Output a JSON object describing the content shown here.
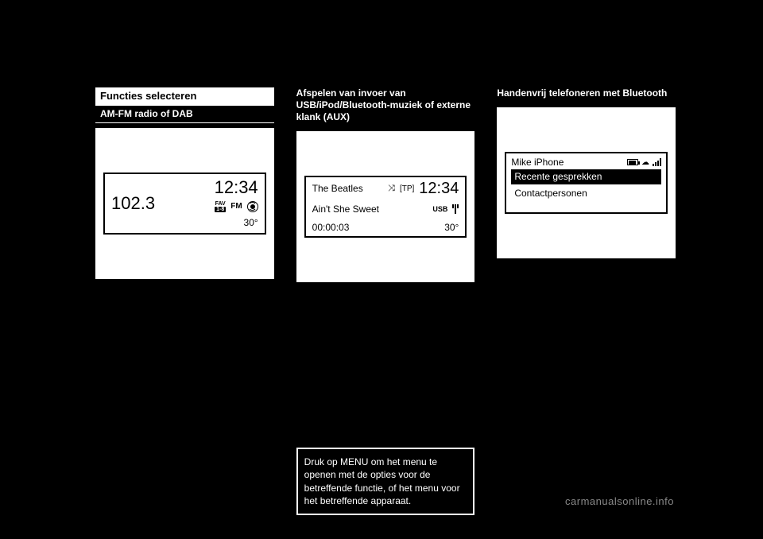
{
  "col1": {
    "heading": "Functies selecteren",
    "sub": "AM-FM radio of DAB",
    "radio": {
      "freq": "102.3",
      "clock": "12:34",
      "fav_top": "FAV",
      "fav_chip": "1-8",
      "band": "FM",
      "temp": "30°"
    }
  },
  "col2": {
    "heading": "Afspelen van invoer van USB/iPod/Bluetooth-muziek of externe klank (AUX)",
    "usb": {
      "artist": "The Beatles",
      "shuffle": "⤨",
      "tp": "[TP]",
      "clock": "12:34",
      "track": "Ain't She Sweet",
      "source": "USB",
      "elapsed": "00:00:03",
      "temp": "30°"
    },
    "note": "Druk op MENU om het menu te openen met de opties voor de betreffende functie, of het menu voor het betreffende apparaat."
  },
  "col3": {
    "heading": "Handenvrij telefoneren met Bluetooth",
    "phone": {
      "device": "Mike iPhone",
      "item_selected": "Recente gesprekken",
      "item_other": "Contactpersonen"
    }
  },
  "watermark": "carmanualsonline.info"
}
